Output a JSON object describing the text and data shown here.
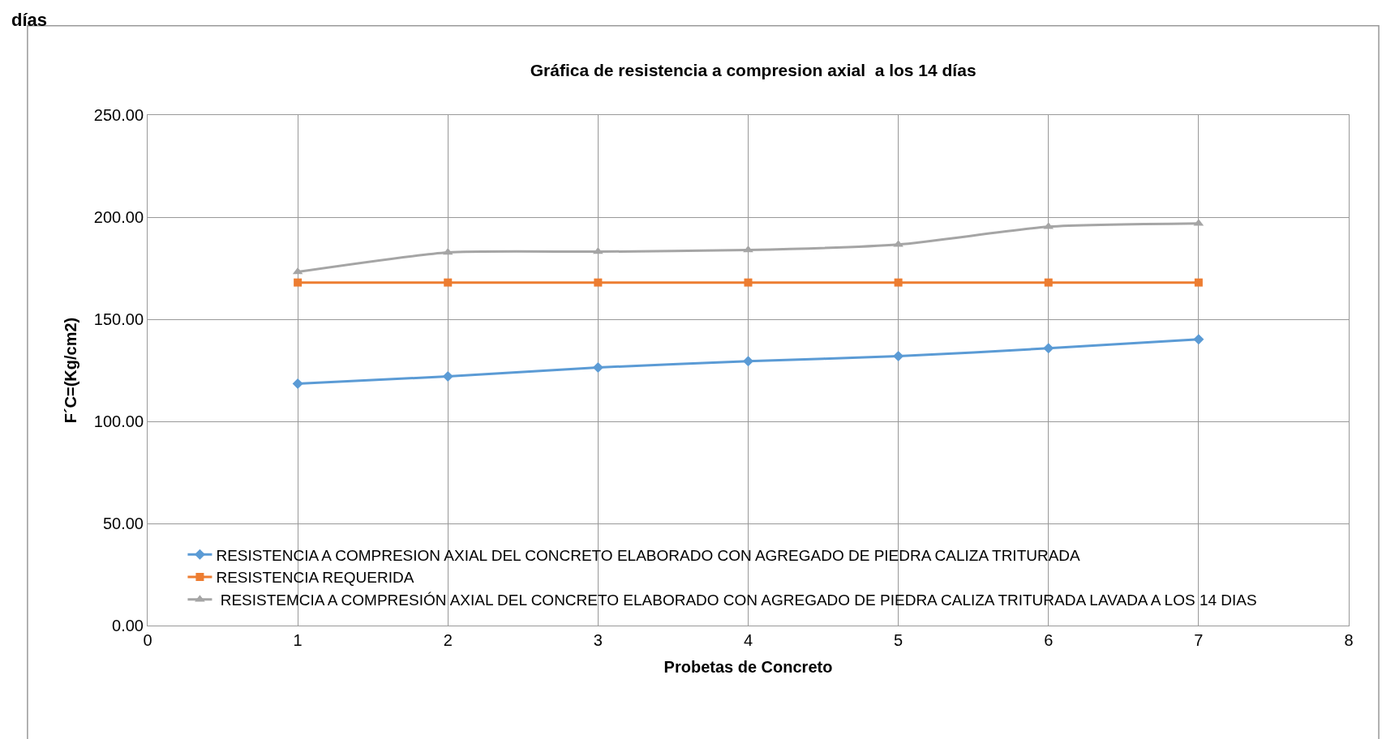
{
  "chart_data": {
    "type": "line",
    "title": "Gráfica de resistencia a compresion axial  a los 14 días",
    "xlabel": "Probetas de Concreto",
    "ylabel": "F´C=(Kg/cm2)",
    "annotations": [
      "días"
    ],
    "x": [
      1,
      2,
      3,
      4,
      5,
      6,
      7
    ],
    "series": [
      {
        "name": "RESISTENCIA A COMPRESION AXIAL DEL CONCRETO ELABORADO CON AGREGADO DE PIEDRA CALIZA TRITURADA",
        "color": "#5b9bd5",
        "marker": "diamond",
        "values": [
          118.5,
          122.0,
          126.4,
          129.5,
          131.9,
          135.8,
          140.2
        ]
      },
      {
        "name": "RESISTENCIA REQUERIDA",
        "color": "#ed7d31",
        "marker": "square",
        "values": [
          168,
          168,
          168,
          168,
          168,
          168,
          168
        ]
      },
      {
        "name": " RESISTEMCIA A COMPRESIÓN AXIAL DEL CONCRETO ELABORADO CON AGREGADO DE PIEDRA CALIZA TRITURADA LAVADA A LOS 14 DIAS",
        "color": "#a5a5a5",
        "marker": "triangle",
        "values": [
          173.2,
          182.7,
          183.1,
          183.9,
          186.6,
          195.3,
          196.9
        ]
      }
    ],
    "xlim": [
      0,
      8
    ],
    "xticks": [
      0,
      1,
      2,
      3,
      4,
      5,
      6,
      7,
      8
    ],
    "ylim": [
      0,
      250
    ],
    "yticks": [
      {
        "value": 0,
        "label": "0.00"
      },
      {
        "value": 50,
        "label": "50.00"
      },
      {
        "value": 100,
        "label": "100.00"
      },
      {
        "value": 150,
        "label": "150.00"
      },
      {
        "value": 200,
        "label": "200.00"
      },
      {
        "value": 250,
        "label": "250.00"
      }
    ],
    "grid": true,
    "legend": "bottom left",
    "line_style": "solid"
  }
}
